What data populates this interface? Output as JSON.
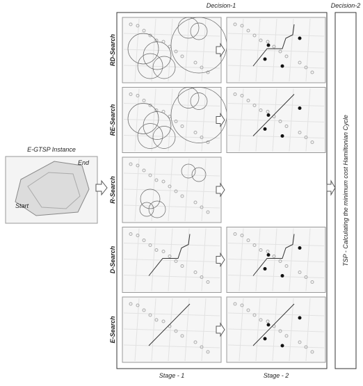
{
  "decision_1": "Decision-1",
  "decision_2": "Decision-2",
  "instance": {
    "title": "E-GTSP Instance",
    "end": "End",
    "start": "Start"
  },
  "rows": [
    {
      "label": "RD-Search"
    },
    {
      "label": "RE-Search"
    },
    {
      "label": "R-Search"
    },
    {
      "label": "D-Search"
    },
    {
      "label": "E-Search"
    }
  ],
  "stages": [
    "Stage - 1",
    "Stage - 2"
  ],
  "tsp": "TSP - Calculating the minimum cost Hamiltonian Cycle"
}
